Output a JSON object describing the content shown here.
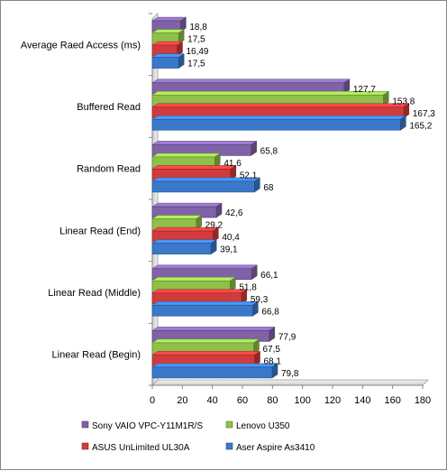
{
  "chart_data": {
    "type": "bar",
    "orientation": "horizontal",
    "categories": [
      "Average Raed Access (ms)",
      "Buffered Read",
      "Random Read",
      "Linear Read (End)",
      "Linear Read (Middle)",
      "Linear Read (Begin)"
    ],
    "series": [
      {
        "name": "Sony VAIO  VPC-Y11M1R/S",
        "color": "#7f62a8",
        "values": [
          18.8,
          127.7,
          65.8,
          42.6,
          66.1,
          77.9
        ],
        "labels": [
          "18,8",
          "127,7",
          "65,8",
          "42,6",
          "66,1",
          "77,9"
        ]
      },
      {
        "name": "Lenovo U350",
        "color": "#8fc04a",
        "values": [
          17.5,
          153.8,
          41.6,
          29.2,
          51.8,
          67.5
        ],
        "labels": [
          "17,5",
          "153,8",
          "41,6",
          "29,2",
          "51,8",
          "67,5"
        ]
      },
      {
        "name": "ASUS UnLimited  UL30A",
        "color": "#d23b3b",
        "values": [
          16.49,
          167.3,
          52.1,
          40.4,
          59.3,
          68.1
        ],
        "labels": [
          "16,49",
          "167,3",
          "52,1",
          "40,4",
          "59,3",
          "68,1"
        ]
      },
      {
        "name": "Aser Aspire As3410",
        "color": "#3a78c9",
        "values": [
          17.5,
          165.2,
          68,
          39.1,
          66.8,
          79.8
        ],
        "labels": [
          "17,5",
          "165,2",
          "68",
          "39,1",
          "66,8",
          "79,8"
        ]
      }
    ],
    "xlim": [
      0,
      180
    ],
    "ticks": [
      "0",
      "20",
      "40",
      "60",
      "80",
      "100",
      "120",
      "140",
      "160",
      "180"
    ],
    "tick_values": [
      0,
      20,
      40,
      60,
      80,
      100,
      120,
      140,
      160,
      180
    ],
    "grid": false,
    "legend_position": "bottom",
    "title": "",
    "xlabel": "",
    "ylabel": ""
  }
}
